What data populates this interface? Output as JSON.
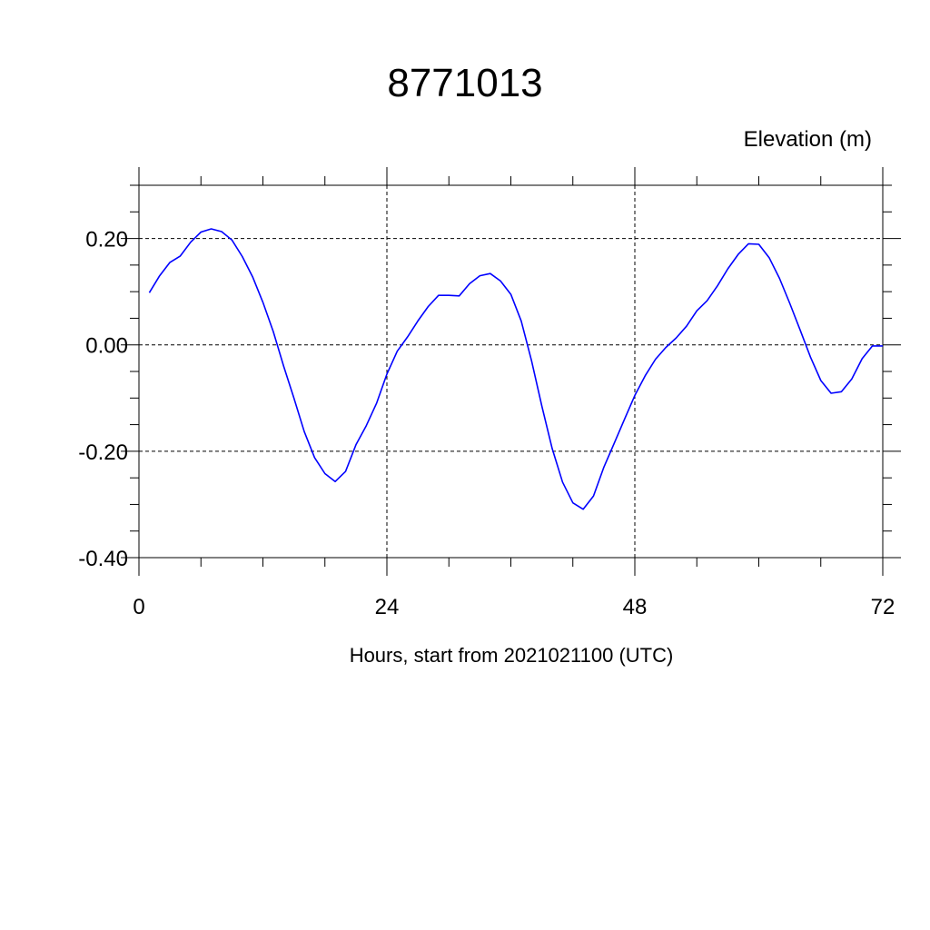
{
  "chart_data": {
    "type": "line",
    "title": "8771013",
    "ylabel": "Elevation (m)",
    "xlabel": "Hours, start from 2021021100 (UTC)",
    "xlim": [
      0,
      72
    ],
    "ylim": [
      -0.4,
      0.3
    ],
    "x_ticks": [
      0,
      24,
      48,
      72
    ],
    "x_tick_labels": [
      "0",
      "24",
      "48",
      "72"
    ],
    "y_ticks": [
      -0.4,
      -0.2,
      0.0,
      0.2
    ],
    "y_tick_labels": [
      "-0.40",
      "-0.20",
      "0.00",
      "0.20"
    ],
    "grid": "dashed at major ticks",
    "line_color": "#0000ff",
    "series": [
      {
        "x": [
          1,
          2,
          3,
          4,
          5,
          6,
          7,
          8,
          9,
          10,
          11,
          12,
          13,
          14,
          15,
          16,
          17,
          18,
          19,
          20,
          21,
          22,
          23,
          24,
          25,
          26,
          27,
          28,
          29,
          30,
          31,
          32,
          33,
          34,
          35,
          36,
          37,
          38,
          39,
          40,
          41,
          42,
          43,
          44,
          45,
          46,
          47,
          48,
          49,
          50,
          51,
          52,
          53,
          54,
          55,
          56,
          57,
          58,
          59,
          60,
          61,
          62,
          63,
          64,
          65,
          66,
          67,
          68,
          69,
          70,
          71,
          72
        ],
        "y": [
          0.098,
          0.13,
          0.155,
          0.167,
          0.193,
          0.212,
          0.218,
          0.213,
          0.197,
          0.166,
          0.128,
          0.08,
          0.025,
          -0.04,
          -0.1,
          -0.163,
          -0.212,
          -0.242,
          -0.257,
          -0.238,
          -0.188,
          -0.152,
          -0.11,
          -0.055,
          -0.012,
          0.015,
          0.045,
          0.072,
          0.093,
          0.093,
          0.092,
          0.115,
          0.13,
          0.134,
          0.12,
          0.095,
          0.045,
          -0.03,
          -0.115,
          -0.195,
          -0.258,
          -0.297,
          -0.309,
          -0.284,
          -0.23,
          -0.185,
          -0.14,
          -0.095,
          -0.058,
          -0.027,
          -0.005,
          0.013,
          0.035,
          0.064,
          0.083,
          0.111,
          0.143,
          0.17,
          0.19,
          0.189,
          0.164,
          0.125,
          0.078,
          0.028,
          -0.023,
          -0.067,
          -0.091,
          -0.088,
          -0.064,
          -0.026,
          -0.002,
          -0.002
        ]
      }
    ]
  }
}
